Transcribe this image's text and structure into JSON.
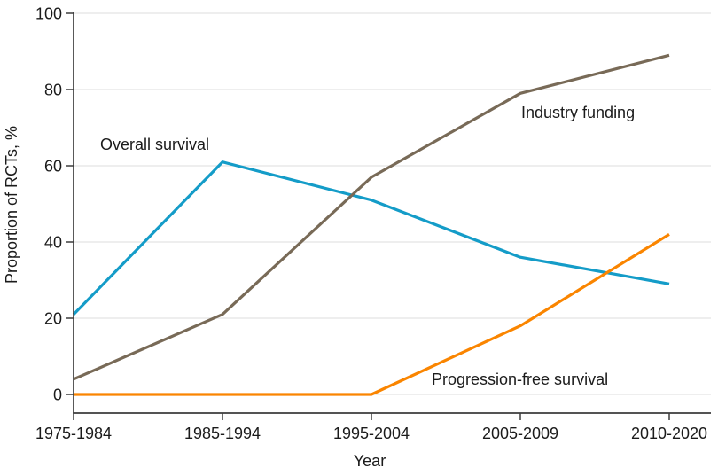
{
  "chart_data": {
    "type": "line",
    "title": "",
    "xlabel": "Year",
    "ylabel": "Proportion of RCTs, %",
    "categories": [
      "1975-1984",
      "1985-1994",
      "1995-2004",
      "2005-2009",
      "2010-2020"
    ],
    "series": [
      {
        "name": "Overall survival",
        "color": "#149CC8",
        "values": [
          21,
          61,
          51,
          36,
          29
        ]
      },
      {
        "name": "Industry funding",
        "color": "#786A57",
        "values": [
          4,
          21,
          57,
          79,
          89
        ]
      },
      {
        "name": "Progression-free survival",
        "color": "#FA8500",
        "values": [
          0,
          0,
          0,
          18,
          42
        ]
      }
    ],
    "ylim": [
      0,
      100
    ],
    "yticks": [
      0,
      20,
      40,
      60,
      80,
      100
    ],
    "grid": true,
    "legend": "inline-annotations",
    "annotations": [
      {
        "text": "Overall survival"
      },
      {
        "text": "Industry funding"
      },
      {
        "text": "Progression-free survival"
      }
    ],
    "colors": {
      "axis": "#3c3c3c",
      "grid": "#e4e4e4",
      "text": "#1b1b1b"
    }
  }
}
